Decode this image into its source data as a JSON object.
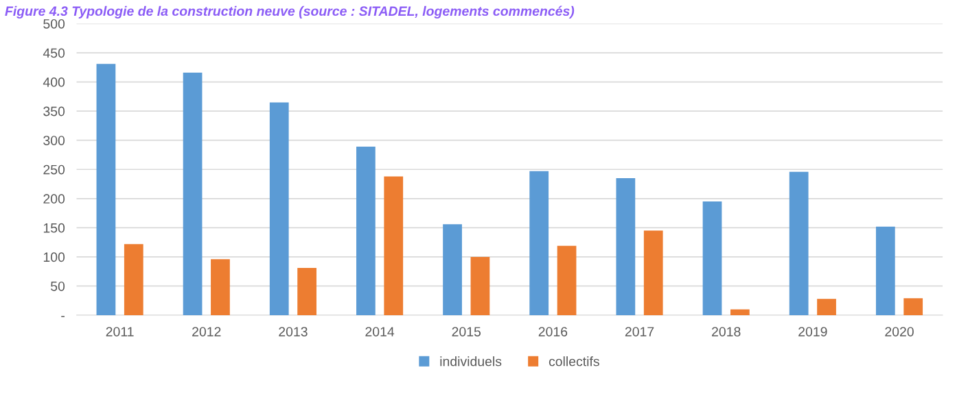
{
  "chart_data": {
    "type": "bar",
    "title": "Figure 4.3 Typologie de la construction neuve (source : SITADEL, logements commencés)",
    "categories": [
      "2011",
      "2012",
      "2013",
      "2014",
      "2015",
      "2016",
      "2017",
      "2018",
      "2019",
      "2020"
    ],
    "series": [
      {
        "name": "individuels",
        "color": "#5b9bd5",
        "values": [
          431,
          416,
          365,
          289,
          156,
          247,
          235,
          195,
          246,
          152
        ]
      },
      {
        "name": "collectifs",
        "color": "#ed7d31",
        "values": [
          122,
          96,
          81,
          238,
          100,
          119,
          145,
          10,
          28,
          29
        ]
      }
    ],
    "ylim": [
      0,
      500
    ],
    "yticks": [
      {
        "value": 0,
        "label": "-"
      },
      50,
      100,
      150,
      200,
      250,
      300,
      350,
      400,
      450,
      500
    ],
    "grid": "y",
    "legend": "bottom"
  }
}
